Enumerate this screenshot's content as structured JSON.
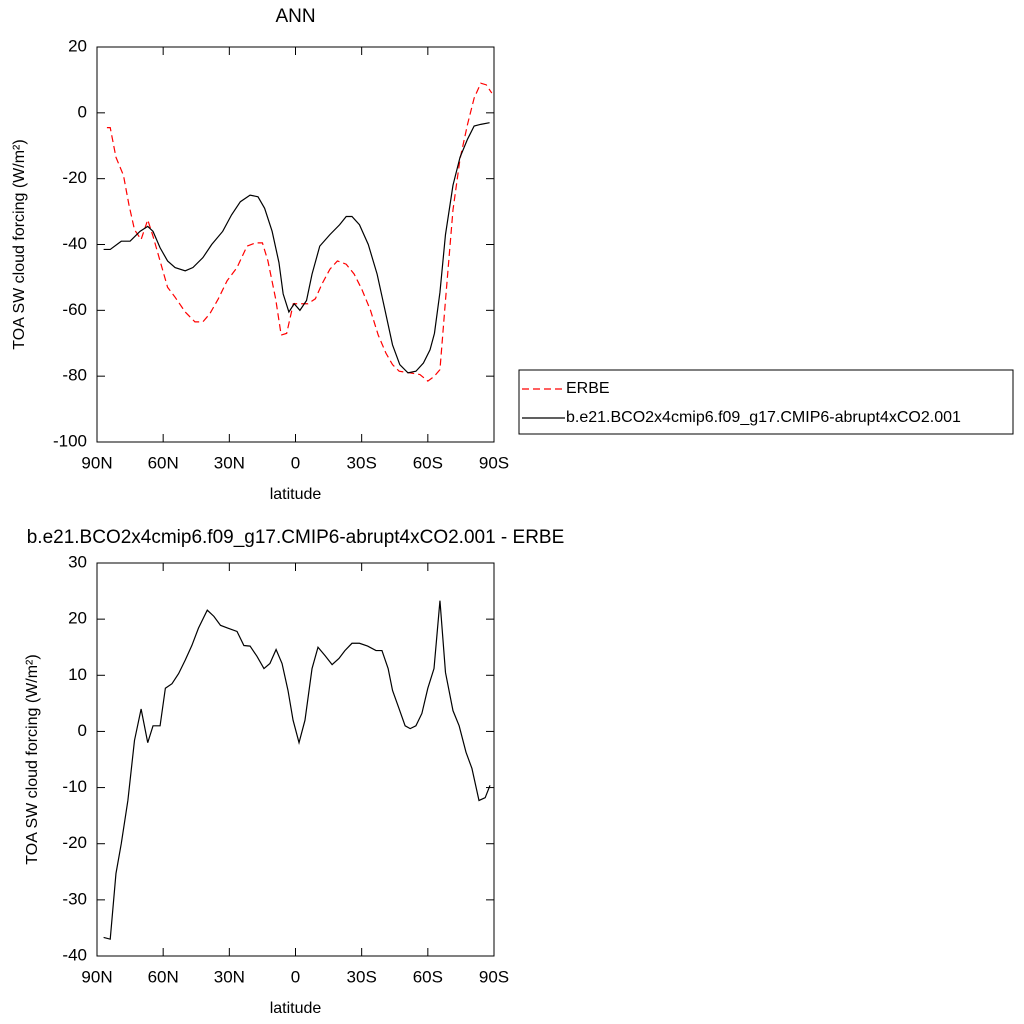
{
  "chart_data": [
    {
      "type": "line",
      "title": "ANN",
      "x_label": "latitude",
      "y_label": "TOA SW cloud forcing (W/m²)",
      "xlim": [
        90,
        -90
      ],
      "xticks": [
        {
          "value": 90,
          "label": "90N"
        },
        {
          "value": 60,
          "label": "60N"
        },
        {
          "value": 30,
          "label": "30N"
        },
        0,
        {
          "value": -30,
          "label": "30S"
        },
        {
          "value": -60,
          "label": "60S"
        },
        {
          "value": -90,
          "label": "90S"
        }
      ],
      "ylim": [
        -100,
        20
      ],
      "yticks": [
        20,
        0,
        -20,
        -40,
        -60,
        -80,
        -100
      ],
      "legend": "right",
      "series": [
        {
          "name": "ERBE",
          "color": "#ff0000",
          "dashed": true,
          "x": [
            85.5,
            84,
            81.4,
            78,
            75.5,
            73,
            70,
            67,
            64.6,
            61.4,
            58,
            54.6,
            50,
            45.6,
            42,
            38.8,
            35,
            31,
            26.5,
            22,
            18,
            15,
            12.5,
            9,
            6.5,
            4,
            1,
            -2,
            -5.6,
            -9,
            -12,
            -15.6,
            -19,
            -23,
            -26.6,
            -30,
            -34,
            -37.5,
            -41,
            -44,
            -47,
            -52,
            -56.4,
            -60,
            -63,
            -65.5,
            -68,
            -71.4,
            -74.6,
            -78,
            -81,
            -84,
            -86.5,
            -89
          ],
          "values": [
            -4.5,
            -4.5,
            -13.5,
            -19,
            -28,
            -35.5,
            -38.5,
            -32.5,
            -37.5,
            -45,
            -53,
            -56,
            -60.5,
            -63.5,
            -63.5,
            -61,
            -56.5,
            -51,
            -47,
            -40.5,
            -39.5,
            -39.5,
            -45,
            -56.5,
            -67.5,
            -67,
            -58,
            -58,
            -58,
            -56.5,
            -52,
            -47.5,
            -45,
            -46,
            -49,
            -53.5,
            -60,
            -67.5,
            -73,
            -76.5,
            -78.5,
            -79,
            -79.5,
            -81.5,
            -80,
            -78,
            -57,
            -29.5,
            -14,
            -3.5,
            4.5,
            9,
            8.5,
            6
          ]
        },
        {
          "name": "b.e21.BCO2x4cmip6.f09_g17.CMIP6-abrupt4xCO2.001",
          "color": "#000000",
          "dashed": false,
          "x": [
            87,
            84,
            79,
            75,
            70.5,
            67,
            64.6,
            61.4,
            58,
            54.6,
            50,
            46.5,
            42,
            38,
            33,
            29,
            25,
            20.6,
            17,
            14,
            10.6,
            7.5,
            5.6,
            3,
            0.6,
            -2,
            -5,
            -7.5,
            -11,
            -15.6,
            -20,
            -23,
            -25.6,
            -29,
            -33,
            -37,
            -40.6,
            -44,
            -47.3,
            -51,
            -54.6,
            -58,
            -61,
            -63,
            -65.5,
            -68,
            -71.4,
            -74.6,
            -78,
            -81,
            -84,
            -88
          ],
          "values": [
            -41.5,
            -41.5,
            -39,
            -39,
            -36,
            -34.5,
            -36,
            -41,
            -45,
            -47,
            -48,
            -47,
            -44,
            -40,
            -36,
            -31,
            -27,
            -25,
            -25.5,
            -29,
            -36,
            -45.5,
            -55,
            -60.5,
            -58,
            -60,
            -57,
            -49,
            -40.5,
            -37,
            -34,
            -31.5,
            -31.5,
            -34,
            -40,
            -49,
            -60,
            -70.5,
            -76.5,
            -79,
            -78.5,
            -76,
            -72,
            -67,
            -54.5,
            -37,
            -22,
            -13.5,
            -8,
            -4,
            -3.5,
            -3
          ]
        }
      ]
    },
    {
      "type": "line",
      "title": "b.e21.BCO2x4cmip6.f09_g17.CMIP6-abrupt4xCO2.001 - ERBE",
      "x_label": "latitude",
      "y_label": "TOA SW cloud forcing (W/m²)",
      "xlim": [
        90,
        -90
      ],
      "xticks": [
        {
          "value": 90,
          "label": "90N"
        },
        {
          "value": 60,
          "label": "60N"
        },
        {
          "value": 30,
          "label": "30N"
        },
        0,
        {
          "value": -30,
          "label": "30S"
        },
        {
          "value": -60,
          "label": "60S"
        },
        {
          "value": -90,
          "label": "90S"
        }
      ],
      "ylim": [
        -40,
        30
      ],
      "yticks": [
        30,
        20,
        10,
        0,
        -10,
        -20,
        -30,
        -40
      ],
      "series": [
        {
          "color": "#000000",
          "dashed": false,
          "x": [
            87,
            84,
            81.4,
            79,
            76,
            73,
            70,
            67,
            64.6,
            61.4,
            59,
            56,
            53,
            50,
            47,
            44,
            40,
            37,
            34,
            30.6,
            26.5,
            23.4,
            20.6,
            17.5,
            14.3,
            11.6,
            8.8,
            6.1,
            3.4,
            1.1,
            -1.6,
            -4.3,
            -7.5,
            -10.2,
            -13.4,
            -16.6,
            -19.7,
            -22.4,
            -25.6,
            -29,
            -32.7,
            -36.5,
            -39.2,
            -42,
            -44,
            -47,
            -49.7,
            -52,
            -54.6,
            -57.3,
            -60,
            -62.8,
            -65.5,
            -68,
            -71.4,
            -74.2,
            -77.3,
            -80,
            -83.2,
            -86,
            -88.2
          ],
          "values": [
            -36.7,
            -37,
            -25.3,
            -20,
            -12.3,
            -1.6,
            4,
            -2,
            1,
            1,
            7.7,
            8.5,
            10.3,
            12.7,
            15.3,
            18.4,
            21.6,
            20.5,
            18.9,
            18.4,
            17.8,
            15.3,
            15.2,
            13.4,
            11.2,
            12.1,
            14.6,
            12.1,
            7.3,
            2,
            -2,
            2,
            11.2,
            15,
            13.5,
            11.9,
            13,
            14.4,
            15.7,
            15.7,
            15.2,
            14.4,
            14.4,
            11.2,
            7.3,
            4,
            1,
            0.5,
            1,
            3.2,
            7.7,
            11.2,
            23.3,
            10.5,
            3.7,
            1,
            -3.7,
            -6.6,
            -12.3,
            -11.8,
            -9.6
          ]
        }
      ]
    }
  ]
}
